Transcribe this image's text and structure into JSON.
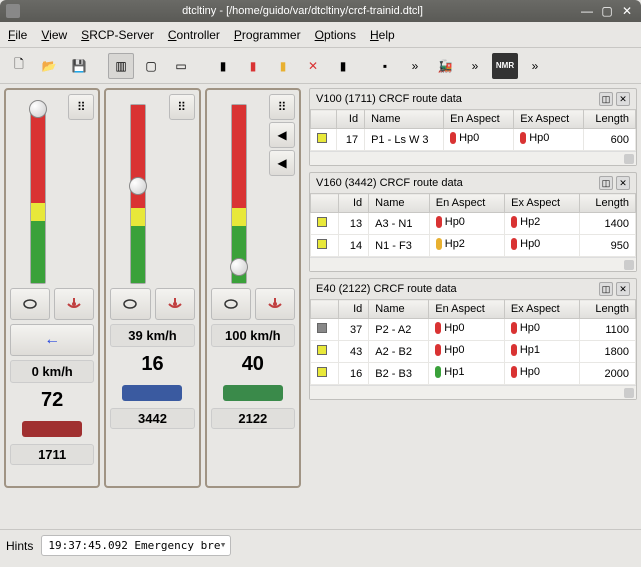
{
  "window": {
    "title": "dtcltiny - [/home/guido/var/dtcltiny/crcf-trainid.dtcl]"
  },
  "menubar": {
    "items": [
      "File",
      "View",
      "SRCP-Server",
      "Controller",
      "Programmer",
      "Options",
      "Help"
    ]
  },
  "toolbar": {
    "new": "new",
    "open": "open",
    "save": "save",
    "group1": [
      "panel-a",
      "panel-b",
      "panel-c"
    ],
    "group2": [
      "sig1",
      "sig2",
      "sig3",
      "sig4",
      "sig5"
    ],
    "group3": [
      "flag",
      "more1",
      "loco",
      "more2",
      "nmr",
      "more3"
    ]
  },
  "locomotives": [
    {
      "slider_pos": 0.97,
      "segs": [
        [
          "#3aa13a",
          0,
          0.35
        ],
        [
          "#e8e83a",
          0.35,
          0.45
        ],
        [
          "#d93333",
          0.45,
          1.0
        ]
      ],
      "dice": true,
      "side_btns": [],
      "ctrl_icons": [
        "⦾",
        "⊥"
      ],
      "dir": "←",
      "dir_color": "#2a4adf",
      "speed": "0 km/h",
      "addr": "72",
      "loco_color": "#a03030",
      "train_id": "1711"
    },
    {
      "slider_pos": 0.52,
      "segs": [
        [
          "#3aa13a",
          0,
          0.32
        ],
        [
          "#e8e83a",
          0.32,
          0.42
        ],
        [
          "#d93333",
          0.42,
          1.0
        ]
      ],
      "dice": true,
      "side_btns": [],
      "ctrl_icons": [
        "⦾",
        "⊥"
      ],
      "speed": "39 km/h",
      "addr": "16",
      "loco_color": "#3a5aa0",
      "train_id": "3442"
    },
    {
      "slider_pos": 0.04,
      "segs": [
        [
          "#3aa13a",
          0,
          0.32
        ],
        [
          "#e8e83a",
          0.32,
          0.42
        ],
        [
          "#d93333",
          0.42,
          1.0
        ]
      ],
      "dice": true,
      "side_btns": [
        "◀",
        "◀"
      ],
      "ctrl_icons": [
        "⦾",
        "⊥"
      ],
      "speed": "100 km/h",
      "addr": "40",
      "loco_color": "#3a8a4a",
      "train_id": "2122"
    }
  ],
  "route_panels": [
    {
      "title": "V100 (1711) CRCF route data",
      "columns": [
        "",
        "Id",
        "Name",
        "En Aspect",
        "Ex Aspect",
        "Length"
      ],
      "rows": [
        {
          "sq": "#e8e83a",
          "id": 17,
          "name": "P1 - Ls W 3",
          "en": {
            "c": "#d93333",
            "t": "Hp0"
          },
          "ex": {
            "c": "#d93333",
            "t": "Hp0"
          },
          "len": 600
        }
      ]
    },
    {
      "title": "V160 (3442) CRCF route data",
      "columns": [
        "",
        "Id",
        "Name",
        "En Aspect",
        "Ex Aspect",
        "Length"
      ],
      "rows": [
        {
          "sq": "#e8e83a",
          "id": 13,
          "name": "A3 - N1",
          "en": {
            "c": "#d93333",
            "t": "Hp0"
          },
          "ex": {
            "c": "#d93333",
            "t": "Hp2"
          },
          "len": 1400
        },
        {
          "sq": "#e8e83a",
          "id": 14,
          "name": "N1 - F3",
          "en": {
            "c": "#e8b030",
            "t": "Hp2"
          },
          "ex": {
            "c": "#d93333",
            "t": "Hp0"
          },
          "len": 950
        }
      ]
    },
    {
      "title": "E40 (2122) CRCF route data",
      "columns": [
        "",
        "Id",
        "Name",
        "En Aspect",
        "Ex Aspect",
        "Length"
      ],
      "rows": [
        {
          "sq": "#888888",
          "id": 37,
          "name": "P2 - A2",
          "en": {
            "c": "#d93333",
            "t": "Hp0"
          },
          "ex": {
            "c": "#d93333",
            "t": "Hp0"
          },
          "len": 1100
        },
        {
          "sq": "#e8e83a",
          "id": 43,
          "name": "A2 - B2",
          "en": {
            "c": "#d93333",
            "t": "Hp0"
          },
          "ex": {
            "c": "#d93333",
            "t": "Hp1"
          },
          "len": 1800
        },
        {
          "sq": "#e8e83a",
          "id": 16,
          "name": "B2 - B3",
          "en": {
            "c": "#3aa13a",
            "t": "Hp1"
          },
          "ex": {
            "c": "#d93333",
            "t": "Hp0"
          },
          "len": 2000
        }
      ]
    }
  ],
  "statusbar": {
    "hints_label": "Hints",
    "hints_value": "19:37:45.092 Emergency bre"
  }
}
